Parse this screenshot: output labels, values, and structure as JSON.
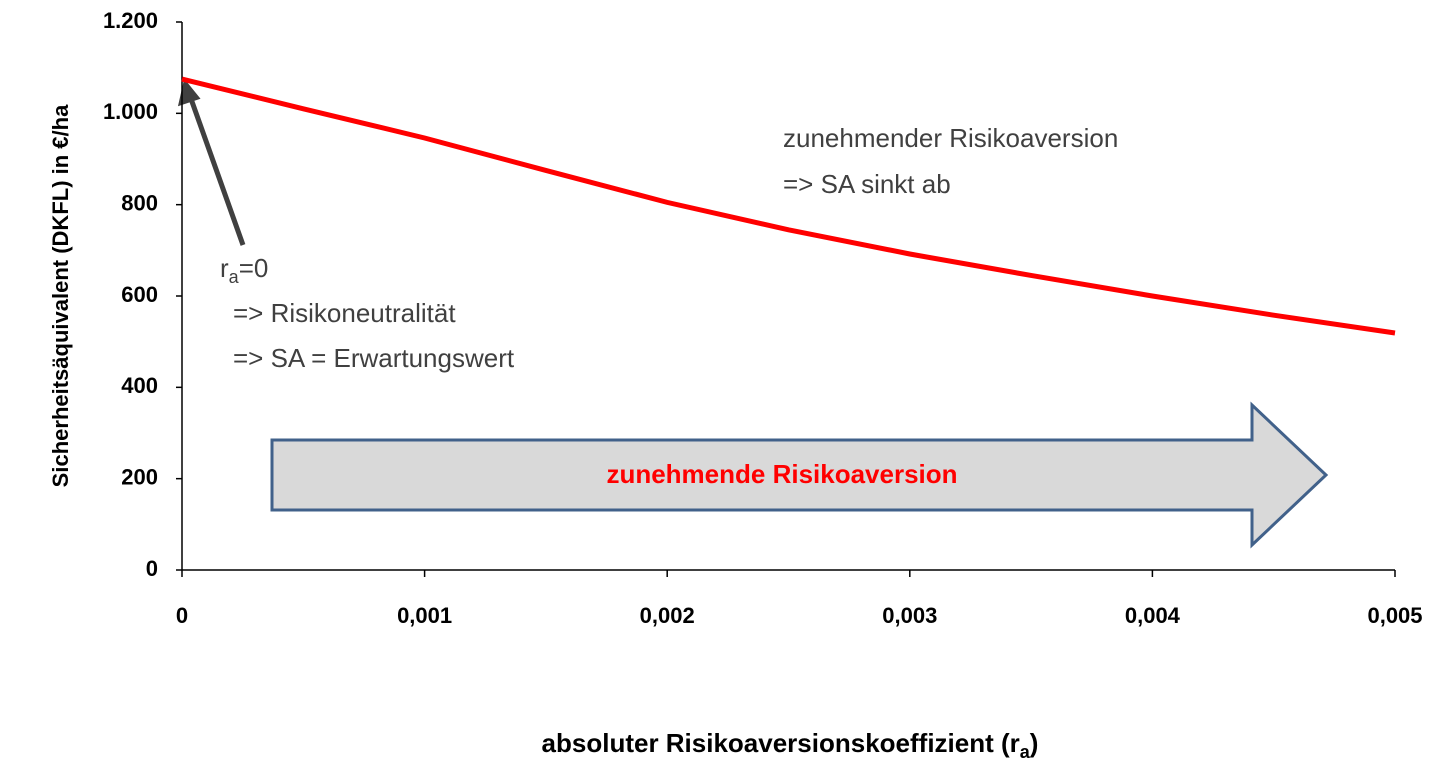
{
  "chart_data": {
    "type": "line",
    "y_label": "Sicherheitsäquivalent (DKFL) in €/ha",
    "x_label": {
      "text": "absoluter Risikoaversionskoeffizient (r",
      "sub": "a",
      "tail": ")"
    },
    "x": [
      0,
      0.0005,
      0.001,
      0.0015,
      0.002,
      0.0025,
      0.003,
      0.0035,
      0.004,
      0.0045,
      0.005
    ],
    "series": [
      {
        "color": "#ff0000",
        "values": [
          1075,
          1010,
          946,
          875,
          805,
          745,
          692,
          645,
          600,
          558,
          519
        ]
      }
    ],
    "xlim": [
      0,
      0.005
    ],
    "xticks": [
      0,
      {
        "value": 0.001,
        "label": "0,001"
      },
      {
        "value": 0.002,
        "label": "0,002"
      },
      {
        "value": 0.003,
        "label": "0,003"
      },
      {
        "value": 0.004,
        "label": "0,004"
      },
      {
        "value": 0.005,
        "label": "0,005"
      }
    ],
    "ylim": [
      0,
      1200
    ],
    "yticks": [
      0,
      200,
      400,
      600,
      800,
      {
        "value": 1000,
        "label": "1.000"
      },
      {
        "value": 1200,
        "label": "1.200"
      }
    ],
    "annotations": {
      "right": [
        "zunehmender Risikoaversion",
        "=> SA sinkt ab"
      ],
      "left_first": {
        "text": "r",
        "sub": "a",
        "tail": "=0"
      },
      "left": [
        "=> Risikoneutralität",
        "=> SA = Erwartungswert"
      ],
      "arrow": "zunehmende Risikoaversion"
    }
  }
}
